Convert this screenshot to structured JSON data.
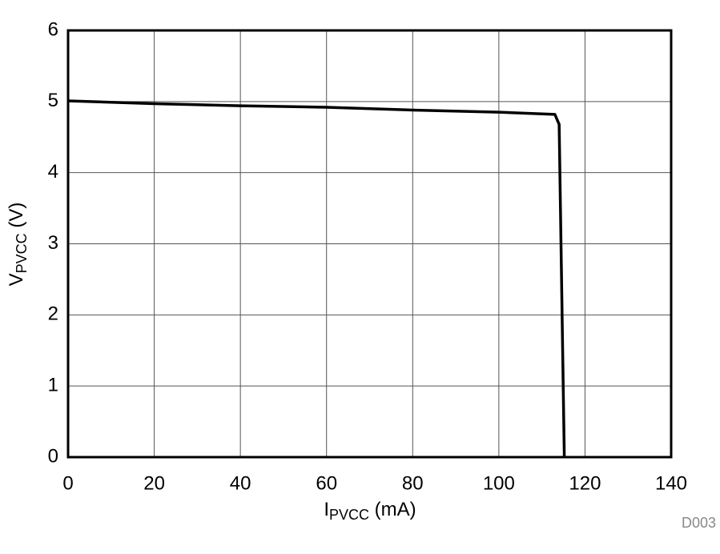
{
  "chart_data": {
    "type": "line",
    "x_label": {
      "main": "I",
      "sub": "PVCC",
      "suffix": " (mA)"
    },
    "y_label": {
      "main": "V",
      "sub": "PVCC",
      "suffix": " (V)"
    },
    "footnote": "D003",
    "series": [
      {
        "color": "#000000",
        "x": [
          0,
          20,
          40,
          60,
          80,
          100,
          113,
          114,
          115.2
        ],
        "values": [
          5.01,
          4.97,
          4.94,
          4.92,
          4.88,
          4.85,
          4.82,
          4.68,
          0
        ]
      }
    ],
    "xlim": [
      0,
      140
    ],
    "xticks": [
      0,
      20,
      40,
      60,
      80,
      100,
      120,
      140
    ],
    "ylim": [
      0,
      6
    ],
    "yticks": [
      0,
      1,
      2,
      3,
      4,
      5,
      6
    ],
    "grid": true
  }
}
